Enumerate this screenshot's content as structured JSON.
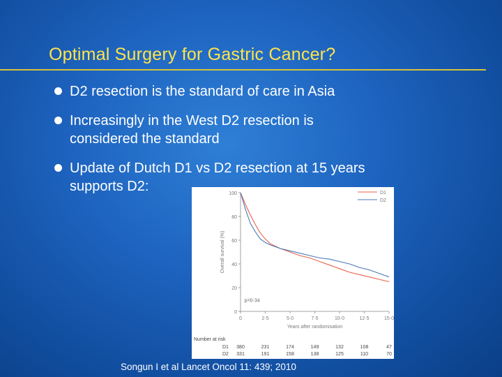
{
  "slide": {
    "title": "Optimal Surgery for Gastric Cancer?",
    "bullets": [
      {
        "lines": [
          "D2 resection is the standard of care in Asia"
        ]
      },
      {
        "lines": [
          "Increasingly in the West D2 resection is",
          "considered the standard"
        ]
      },
      {
        "lines": [
          "Update of Dutch D1 vs D2 resection at 15 years",
          "supports D2:"
        ]
      }
    ],
    "citation": "Songun I et al Lancet Oncol 11: 439; 2010"
  },
  "colors": {
    "title": "#ffe44a",
    "d1": "#e8604a",
    "d2": "#4a78b8"
  },
  "chart_data": {
    "type": "line",
    "title": "",
    "xlabel": "Years after randomisation",
    "ylabel": "Overall survival (%)",
    "xlim": [
      0,
      15
    ],
    "ylim": [
      0,
      100
    ],
    "x_ticks": [
      0,
      2.5,
      5,
      7.5,
      10,
      12.5,
      15
    ],
    "x_tick_labels": [
      "0",
      "2·5",
      "5·0",
      "7·5",
      "10·0",
      "12·5",
      "15·0"
    ],
    "y_ticks": [
      0,
      20,
      40,
      60,
      80,
      100
    ],
    "y_tick_labels": [
      "0",
      "20",
      "40",
      "60",
      "80",
      "100"
    ],
    "legend_position": "top-right",
    "annotation": "p=0·34",
    "series": [
      {
        "name": "D1",
        "color": "#e8604a",
        "x": [
          0,
          0.5,
          1,
          1.5,
          2,
          2.5,
          3,
          4,
          5,
          6,
          7,
          8,
          9,
          10,
          11,
          12,
          13,
          14,
          15
        ],
        "values": [
          100,
          90,
          81,
          73,
          66,
          61,
          57,
          53,
          50,
          47,
          45,
          42,
          39,
          36,
          33,
          31,
          29,
          27,
          25
        ]
      },
      {
        "name": "D2",
        "color": "#4a78b8",
        "x": [
          0,
          0.5,
          1,
          1.5,
          2,
          2.5,
          3,
          4,
          5,
          6,
          7,
          8,
          9,
          10,
          11,
          12,
          13,
          14,
          15
        ],
        "values": [
          100,
          86,
          74,
          67,
          61,
          58,
          56,
          53,
          51,
          49,
          47,
          45,
          44,
          42,
          40,
          37,
          35,
          32,
          29
        ]
      }
    ],
    "risk_table": {
      "header": "Number at risk",
      "rows": [
        {
          "label": "D1",
          "values": [
            "380",
            "231",
            "174",
            "149",
            "132",
            "108",
            "47"
          ]
        },
        {
          "label": "D2",
          "values": [
            "331",
            "191",
            "158",
            "138",
            "125",
            "110",
            "70"
          ]
        }
      ]
    }
  }
}
